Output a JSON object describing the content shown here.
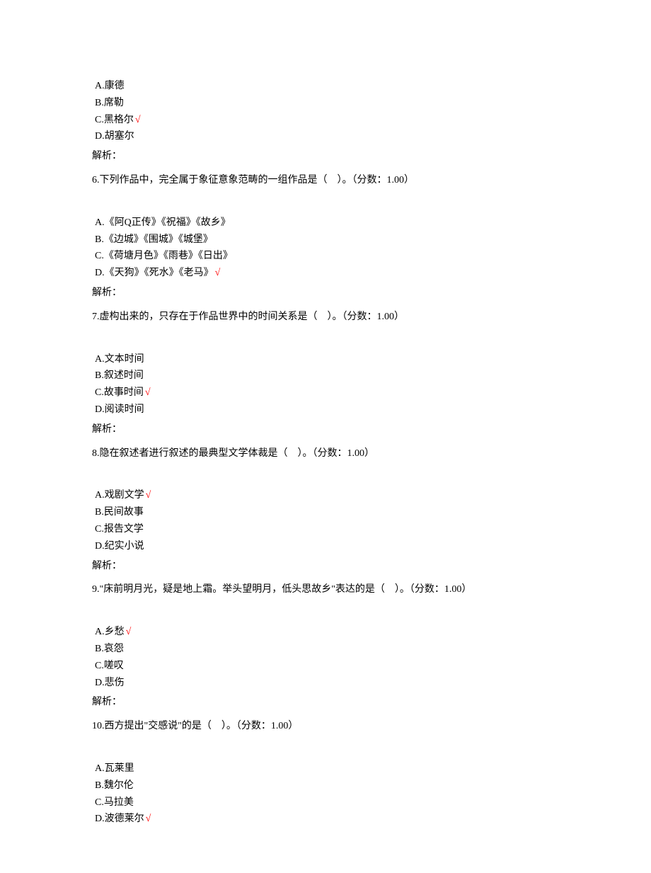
{
  "checkmark": "√",
  "q5_tail": {
    "options": [
      {
        "label": "A.康德",
        "correct": false
      },
      {
        "label": "B.席勒",
        "correct": false
      },
      {
        "label": "C.黑格尔",
        "correct": true
      },
      {
        "label": "D.胡塞尔",
        "correct": false
      }
    ],
    "analysis": "解析："
  },
  "q6": {
    "stem": "6.下列作品中，完全属于象征意象范畴的一组作品是（　）。（分数：1.00）",
    "options": [
      {
        "label": "A.《阿Q正传》《祝福》《故乡》",
        "correct": false
      },
      {
        "label": "B.《边城》《围城》《城堡》",
        "correct": false
      },
      {
        "label": "C.《荷塘月色》《雨巷》《日出》",
        "correct": false
      },
      {
        "label": "D.《天狗》《死水》《老马》",
        "correct": true
      }
    ],
    "analysis": "解析："
  },
  "q7": {
    "stem": "7.虚构出来的，只存在于作品世界中的时间关系是（　）。（分数：1.00）",
    "options": [
      {
        "label": "A.文本时间",
        "correct": false
      },
      {
        "label": "B.叙述时间",
        "correct": false
      },
      {
        "label": "C.故事时间",
        "correct": true
      },
      {
        "label": "D.阅读时间",
        "correct": false
      }
    ],
    "analysis": "解析："
  },
  "q8": {
    "stem": "8.隐在叙述者进行叙述的最典型文学体裁是（　）。（分数：1.00）",
    "options": [
      {
        "label": "A.戏剧文学",
        "correct": true
      },
      {
        "label": "B.民间故事",
        "correct": false
      },
      {
        "label": "C.报告文学",
        "correct": false
      },
      {
        "label": "D.纪实小说",
        "correct": false
      }
    ],
    "analysis": "解析："
  },
  "q9": {
    "stem": "9.\"床前明月光，疑是地上霜。举头望明月，低头思故乡\"表达的是（　）。（分数：1.00）",
    "options": [
      {
        "label": "A.乡愁",
        "correct": true
      },
      {
        "label": "B.哀怨",
        "correct": false
      },
      {
        "label": "C.嗟叹",
        "correct": false
      },
      {
        "label": "D.悲伤",
        "correct": false
      }
    ],
    "analysis": "解析："
  },
  "q10": {
    "stem": "10.西方提出\"交感说\"的是（　）。（分数：1.00）",
    "options": [
      {
        "label": "A.瓦莱里",
        "correct": false
      },
      {
        "label": "B.魏尔伦",
        "correct": false
      },
      {
        "label": "C.马拉美",
        "correct": false
      },
      {
        "label": "D.波德莱尔",
        "correct": true
      }
    ]
  }
}
